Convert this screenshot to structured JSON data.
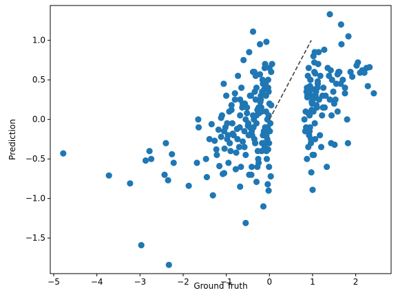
{
  "chart_data": {
    "type": "scatter",
    "title": "",
    "xlabel": "Ground Truth",
    "ylabel": "Prediction",
    "xlim": [
      -5.08,
      2.82
    ],
    "ylim": [
      -1.95,
      1.44
    ],
    "xticks": [
      -5,
      -4,
      -3,
      -2,
      -1,
      0,
      1,
      2
    ],
    "xtick_labels": [
      "−5",
      "−4",
      "−3",
      "−2",
      "−1",
      "0",
      "1",
      "2"
    ],
    "yticks": [
      -1.5,
      -1.0,
      -0.5,
      0.0,
      0.5,
      1.0
    ],
    "ytick_labels": [
      "−1.5",
      "−1.0",
      "−0.5",
      "0.0",
      "0.5",
      "1.0"
    ],
    "grid": false,
    "legend": "none",
    "point_color": "#1f77b4",
    "line_color": "#404040",
    "reference_line": {
      "style": "dashed",
      "x": [
        0.0,
        0.97
      ],
      "y": [
        0.0,
        1.0
      ]
    },
    "points": {
      "x": [
        -4.78,
        -3.72,
        -3.23,
        -2.97,
        -2.87,
        -2.78,
        -2.74,
        -2.43,
        -2.4,
        -2.35,
        -2.33,
        -2.26,
        -2.22,
        -1.87,
        -1.68,
        -1.65,
        -1.64,
        -1.47,
        -1.45,
        -1.39,
        -1.34,
        -1.31,
        -1.27,
        -1.23,
        -1.22,
        -1.18,
        -1.16,
        -1.12,
        -1.1,
        -1.08,
        -1.06,
        -1.04,
        -1.02,
        -1.0,
        -0.98,
        -0.95,
        -0.93,
        -0.9,
        -0.88,
        -0.86,
        -0.83,
        -0.8,
        -0.78,
        -0.75,
        -0.73,
        -0.7,
        -0.68,
        -0.65,
        -0.62,
        -0.6,
        -0.58,
        -0.55,
        -0.52,
        -0.5,
        -0.47,
        -0.45,
        -0.42,
        -0.4,
        -0.38,
        -0.35,
        -0.33,
        -0.3,
        -0.28,
        -0.25,
        -0.22,
        -0.2,
        -0.18,
        -0.15,
        -0.13,
        -0.1,
        -0.08,
        -0.05,
        -0.03,
        0.0,
        0.02,
        0.04,
        -1.05,
        -0.98,
        -0.92,
        -0.85,
        -0.8,
        -0.74,
        -0.69,
        -0.63,
        -0.58,
        -0.52,
        -0.48,
        -0.43,
        -0.37,
        -0.32,
        -0.27,
        -0.21,
        -0.17,
        -0.12,
        -0.07,
        -0.02,
        -1.12,
        -0.96,
        -0.88,
        -0.77,
        -0.66,
        -0.57,
        -0.49,
        -0.41,
        -0.34,
        -0.26,
        -0.19,
        -0.11,
        -0.04,
        -0.55,
        -0.35,
        -0.22,
        -0.08,
        0.01,
        -0.45,
        -0.3,
        -0.14,
        -0.06,
        -0.62,
        -0.41,
        -0.18,
        -0.03,
        -0.25,
        -0.1,
        -0.02,
        -0.32,
        -0.16,
        -0.05,
        -0.68,
        -0.47,
        -0.28,
        -0.11,
        -0.2,
        -0.07,
        -0.38,
        -0.6,
        -0.3,
        -0.15,
        -0.01,
        -0.12,
        -0.04,
        0.03,
        -0.09,
        -0.36,
        -0.24,
        -1.05,
        -0.68,
        -0.55,
        -0.3,
        -0.14,
        -0.01,
        0.06,
        -0.38,
        -0.22,
        -0.07,
        0.0,
        0.04,
        -0.1,
        -0.03,
        -0.17,
        -0.02,
        0.81,
        0.85,
        0.87,
        0.88,
        0.9,
        0.92,
        0.93,
        0.95,
        0.96,
        0.98,
        1.0,
        1.02,
        1.04,
        1.06,
        1.08,
        1.1,
        1.12,
        1.15,
        1.18,
        1.22,
        1.25,
        1.3,
        1.35,
        1.4,
        1.45,
        1.5,
        1.55,
        1.6,
        1.67,
        1.75,
        1.82,
        0.84,
        0.89,
        0.94,
        0.99,
        1.03,
        1.07,
        1.13,
        1.2,
        1.28,
        1.38,
        1.48,
        1.58,
        1.7,
        0.86,
        0.91,
        0.97,
        1.01,
        1.05,
        1.11,
        1.17,
        1.24,
        1.33,
        1.44,
        1.53,
        1.65,
        1.8,
        0.88,
        0.95,
        1.0,
        1.06,
        1.14,
        1.23,
        0.83,
        0.92,
        0.98,
        1.04,
        1.12,
        0.9,
        0.96,
        1.09,
        0.87,
        0.94,
        1.02,
        1.27,
        1.42,
        1.58,
        1.92,
        2.02,
        2.1,
        2.15,
        2.25,
        2.32,
        2.42,
        1.88,
        2.05,
        2.2,
        2.28,
        1.75,
        1.62,
        1.4,
        1.66,
        1.83,
        1.51,
        1.43,
        1.0,
        0.97,
        1.05,
        0.93,
        0.89
      ],
      "y": [
        -0.43,
        -0.71,
        -0.81,
        -1.59,
        -0.52,
        -0.4,
        -0.5,
        -0.7,
        -0.3,
        -0.77,
        -1.84,
        -0.44,
        -0.55,
        -0.84,
        -0.55,
        0.0,
        -0.1,
        -0.5,
        -0.73,
        -0.25,
        -0.06,
        -0.96,
        -0.27,
        -0.38,
        -0.45,
        -0.13,
        -0.59,
        -0.22,
        0.05,
        -0.69,
        0.45,
        -0.37,
        -0.1,
        0.3,
        -0.25,
        -0.55,
        0.1,
        -0.4,
        0.18,
        -0.05,
        -0.2,
        0.33,
        -0.63,
        -0.12,
        0.55,
        -0.35,
        0.05,
        0.4,
        -0.28,
        0.2,
        -0.15,
        -0.45,
        0.15,
        -0.08,
        0.85,
        0.3,
        -0.7,
        -0.2,
        0.05,
        0.6,
        -0.3,
        0.4,
        0.12,
        -0.55,
        0.95,
        0.25,
        -0.4,
        0.45,
        -0.15,
        0.7,
        0.1,
        -0.25,
        0.5,
        0.2,
        -0.05,
        0.6,
        -0.15,
        -0.05,
        -0.3,
        -0.18,
        0.25,
        -0.25,
        -0.1,
        0.15,
        -0.35,
        0.08,
        -0.2,
        0.3,
        -0.1,
        0.55,
        -0.4,
        0.22,
        -0.3,
        0.38,
        -0.2,
        0.05,
        0.02,
        -0.2,
        0.12,
        -0.42,
        -0.6,
        0.2,
        -0.05,
        -0.15,
        0.35,
        -0.5,
        0.15,
        -0.35,
        -0.1,
        0.0,
        -0.25,
        0.1,
        0.3,
        -0.15,
        -0.1,
        0.05,
        -0.3,
        -0.5,
        0.2,
        -0.6,
        0.1,
        0.4,
        0.15,
        -0.1,
        0.35,
        0.25,
        0.5,
        0.0,
        0.25,
        -0.7,
        -0.6,
        0.65,
        0.3,
        -0.4,
        0.6,
        0.75,
        -0.05,
        -0.2,
        -0.3,
        -0.2,
        -0.82,
        -0.72,
        0.45,
        0.0,
        0.08,
        -0.68,
        -0.85,
        -1.31,
        -0.79,
        -1.1,
        -0.6,
        0.7,
        1.11,
        0.57,
        0.98,
        0.65,
        0.18,
        0.48,
        -0.38,
        0.35,
        -0.9,
        0.0,
        -0.1,
        0.4,
        0.3,
        -0.35,
        -0.2,
        0.05,
        0.5,
        -0.3,
        0.22,
        -0.45,
        0.1,
        0.6,
        -0.25,
        0.35,
        0.15,
        0.45,
        0.25,
        0.55,
        0.05,
        0.4,
        0.3,
        0.65,
        0.25,
        0.5,
        0.2,
        0.45,
        0.6,
        0.95,
        0.4,
        -0.3,
        0.1,
        0.55,
        -0.1,
        0.2,
        -0.45,
        0.3,
        0.7,
        -0.35,
        0.15,
        0.55,
        0.35,
        0.1,
        0.5,
        0.35,
        0.65,
        0.3,
        0.25,
        -0.05,
        0.4,
        -0.2,
        0.15,
        -0.6,
        0.05,
        0.25,
        0.45,
        0.0,
        0.28,
        0.5,
        0.38,
        0.58,
        0.85,
        0.3,
        -0.15,
        0.35,
        0.12,
        0.72,
        0.48,
        0.08,
        -0.25,
        0.18,
        -0.5,
        0.42,
        0.8,
        0.88,
        0.62,
        0.57,
        0.54,
        0.68,
        0.59,
        0.62,
        0.65,
        0.66,
        0.33,
        0.6,
        0.72,
        0.59,
        0.42,
        0.33,
        0.6,
        1.33,
        1.2,
        1.05,
        -0.32,
        -0.3,
        -0.89,
        -0.67,
        0.85,
        -0.15,
        0.35
      ]
    }
  }
}
